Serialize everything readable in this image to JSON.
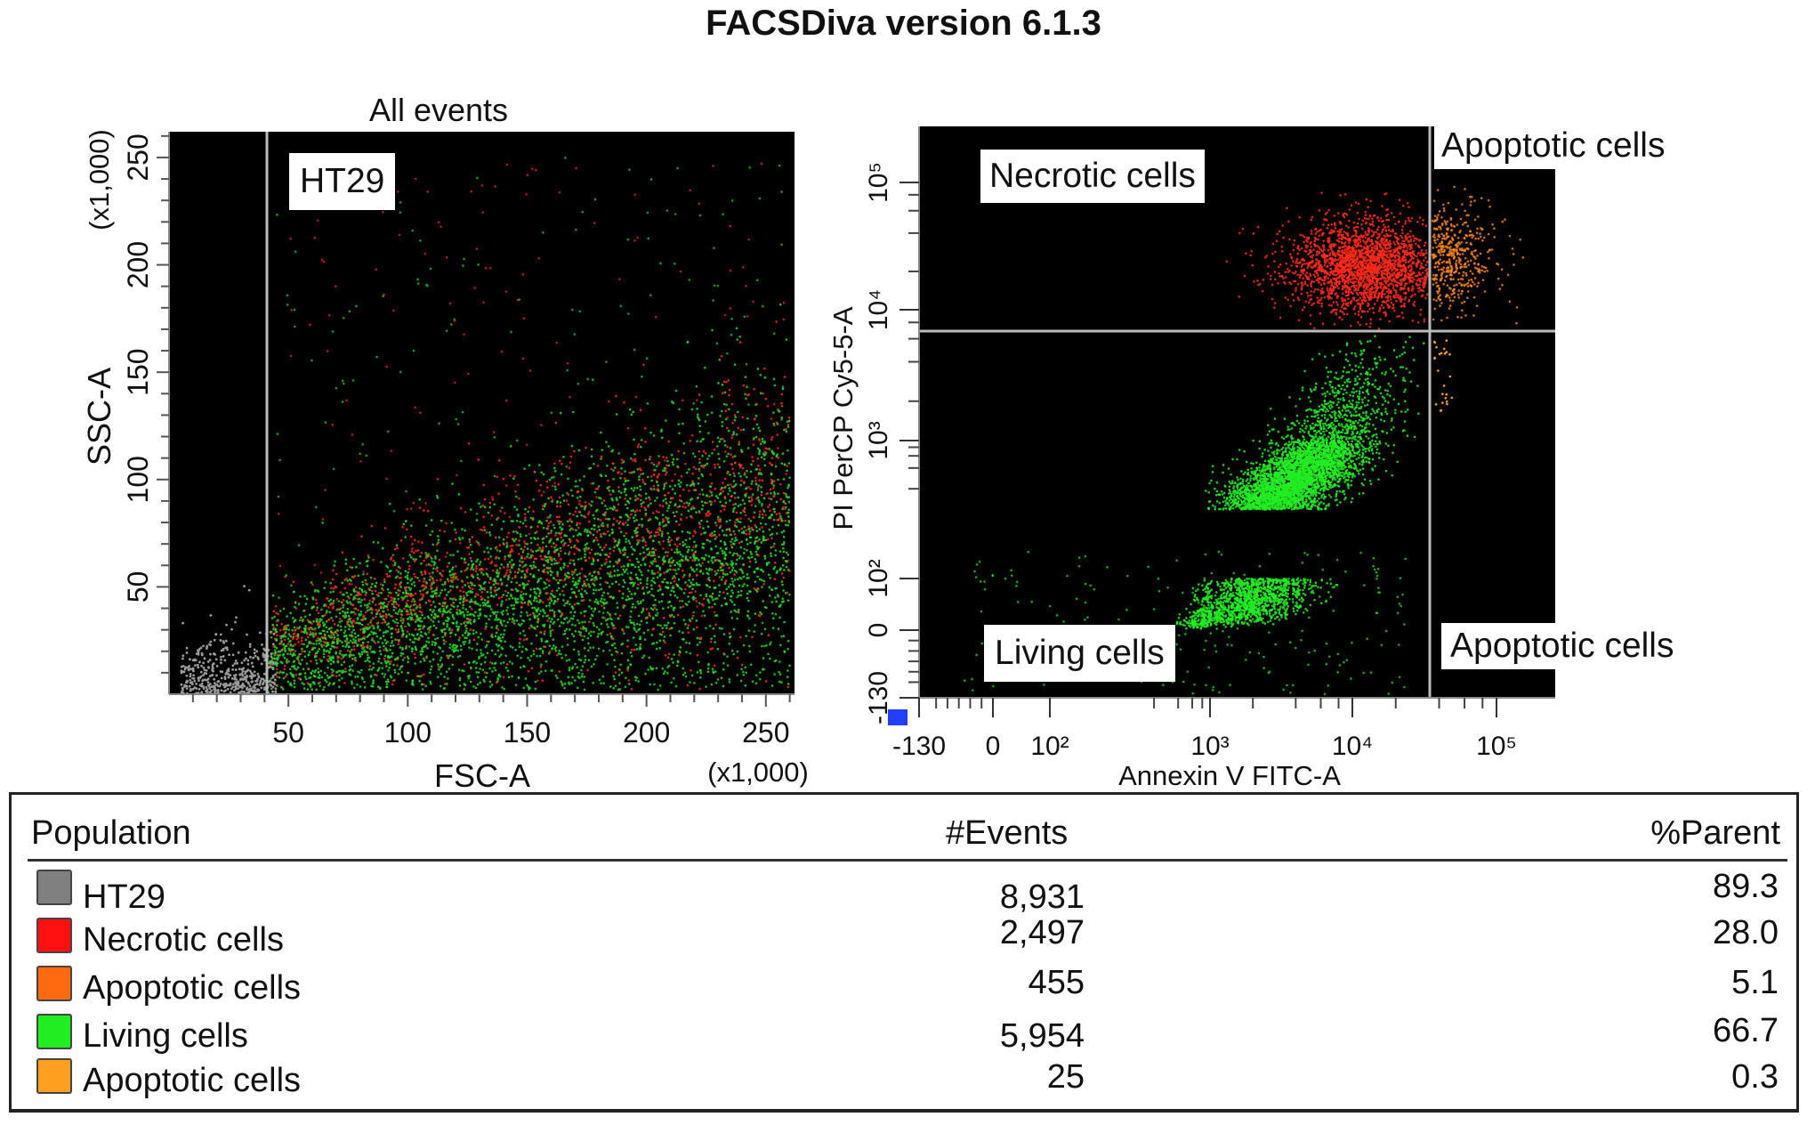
{
  "title": "FACSDiva version 6.1.3",
  "chart_data": [
    {
      "type": "scatter",
      "title": "All events",
      "xlabel": "FSC-A",
      "ylabel": "SSC-A",
      "x_multiplier_label": "(x1,000)",
      "y_multiplier_label": "(x1,000)",
      "xlim": [
        0,
        262
      ],
      "ylim": [
        0,
        262
      ],
      "xticks": [
        "50",
        "100",
        "150",
        "200",
        "250"
      ],
      "xtick_values": [
        50,
        100,
        150,
        200,
        250
      ],
      "yticks": [
        "50",
        "100",
        "150",
        "200",
        "250"
      ],
      "ytick_values": [
        50,
        100,
        150,
        200,
        250
      ],
      "gate": {
        "name": "HT29",
        "x_threshold": 42
      },
      "series": [
        {
          "name": "HT29",
          "color": "#22dd22"
        },
        {
          "name": "Necrotic cells",
          "color": "#ff2a1a"
        }
      ],
      "grid": false,
      "background": "#000000"
    },
    {
      "type": "scatter",
      "xlabel": "Annexin V FITC-A",
      "ylabel": "PI PerCP Cy5-5-A",
      "scale": "log",
      "xticks": [
        "-130",
        "0",
        "10²",
        "10³",
        "10⁴",
        "10⁵"
      ],
      "yticks": [
        "-130",
        "0",
        "10²",
        "10³",
        "10⁴",
        "10⁵"
      ],
      "quadrant_gates": {
        "x_threshold": 30000,
        "y_threshold": 6500
      },
      "quadrants": [
        "Necrotic cells",
        "Apoptotic cells",
        "Living cells",
        "Apoptotic cells"
      ],
      "series": [
        {
          "name": "Necrotic cells",
          "color": "#ff2a1a"
        },
        {
          "name": "Apoptotic cells",
          "color": "#ff8a1a"
        },
        {
          "name": "Living cells",
          "color": "#22ee22"
        },
        {
          "name": "Apoptotic cells",
          "color": "#ffa020"
        }
      ],
      "grid": false,
      "background": "#000000"
    }
  ],
  "table": {
    "headers": [
      "Population",
      "#Events",
      "%Parent"
    ],
    "rows": [
      {
        "name": "HT29",
        "events": "8,931",
        "parent": "89.3",
        "color": "#808080"
      },
      {
        "name": "Necrotic cells",
        "events": "2,497",
        "parent": "28.0",
        "color": "#ff1010"
      },
      {
        "name": "Apoptotic cells",
        "events": "455",
        "parent": "5.1",
        "color": "#ff6a10"
      },
      {
        "name": "Living cells",
        "events": "5,954",
        "parent": "66.7",
        "color": "#20ee20"
      },
      {
        "name": "Apoptotic cells",
        "events": "25",
        "parent": "0.3",
        "color": "#ffa020"
      }
    ]
  }
}
